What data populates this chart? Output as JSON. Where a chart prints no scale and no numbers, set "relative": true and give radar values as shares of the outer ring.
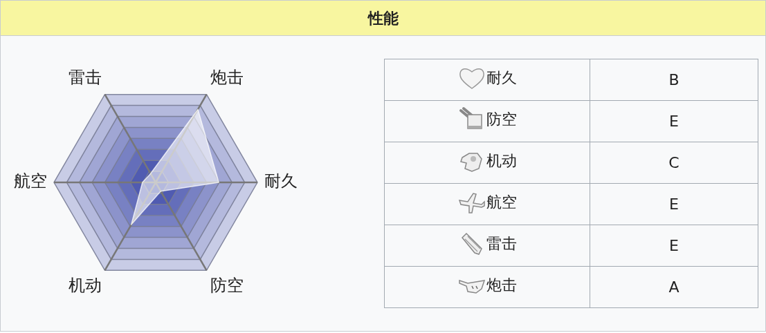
{
  "chart_data": [
    {
      "type": "radar",
      "title": "性能",
      "relative": true,
      "grid": true,
      "legend": false,
      "marker": "none",
      "categories": [
        "炮击",
        "耐久",
        "防空",
        "机动",
        "航空",
        "雷击"
      ],
      "series": [
        {
          "color": "#ffffff",
          "values": [
            0.83,
            0.62,
            0.1,
            0.48,
            0.13,
            0.1
          ]
        }
      ]
    },
    {
      "type": "other",
      "categories": [
        "耐久",
        "防空",
        "机动",
        "航空",
        "雷击",
        "炮击"
      ],
      "value_labels": [
        "B",
        "E",
        "C",
        "E",
        "E",
        "A"
      ]
    }
  ]
}
